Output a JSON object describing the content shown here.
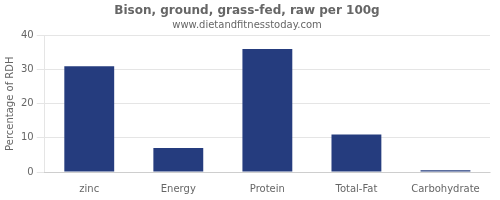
{
  "chart_data": {
    "type": "bar",
    "title": "Bison, ground, grass-fed, raw per 100g",
    "subtitle": "www.dietandfitnesstoday.com",
    "categories": [
      "zinc",
      "Energy",
      "Protein",
      "Total-Fat",
      "Carbohydrate"
    ],
    "values": [
      31,
      7,
      36,
      11,
      0.5
    ],
    "color": "#253c7e",
    "ylabel": "Percentage of RDH",
    "ylim": [
      0,
      40
    ],
    "yticks": [
      0,
      10,
      20,
      30,
      40
    ],
    "grid": true
  }
}
